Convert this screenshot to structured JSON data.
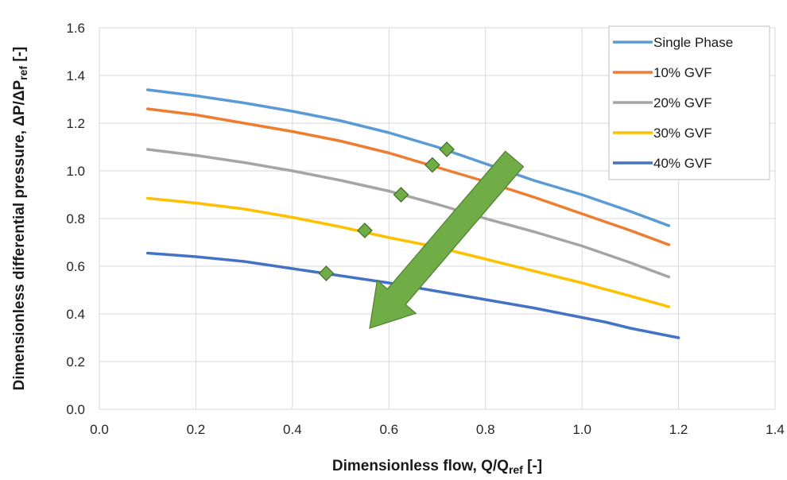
{
  "chart_data": {
    "type": "line",
    "xlabel": "Dimensionless flow, Q/Q",
    "xlabel_sub": "ref",
    "xlabel_tail": " [-]",
    "ylabel": "Dimensionless differential pressure, ΔP/ΔP",
    "ylabel_sub": "ref",
    "ylabel_tail": " [-]",
    "xlim": [
      0.0,
      1.4
    ],
    "ylim": [
      0.0,
      1.6
    ],
    "xticks": [
      "0.0",
      "0.2",
      "0.4",
      "0.6",
      "0.8",
      "1.0",
      "1.2",
      "1.4"
    ],
    "yticks": [
      "0.0",
      "0.2",
      "0.4",
      "0.6",
      "0.8",
      "1.0",
      "1.2",
      "1.4",
      "1.6"
    ],
    "grid": true,
    "legend_position": "top-right",
    "series": [
      {
        "name": "Single Phase",
        "color": "#5B9BD5",
        "x": [
          0.1,
          0.2,
          0.3,
          0.4,
          0.5,
          0.6,
          0.7,
          0.8,
          0.9,
          1.0,
          1.1,
          1.18
        ],
        "y": [
          1.34,
          1.315,
          1.285,
          1.25,
          1.21,
          1.16,
          1.1,
          1.03,
          0.96,
          0.9,
          0.83,
          0.77
        ]
      },
      {
        "name": "10% GVF",
        "color": "#ED7D31",
        "x": [
          0.1,
          0.2,
          0.3,
          0.4,
          0.5,
          0.6,
          0.7,
          0.8,
          0.9,
          1.0,
          1.1,
          1.18
        ],
        "y": [
          1.26,
          1.235,
          1.2,
          1.165,
          1.125,
          1.075,
          1.015,
          0.955,
          0.89,
          0.82,
          0.75,
          0.69
        ]
      },
      {
        "name": "20% GVF",
        "color": "#A5A5A5",
        "x": [
          0.1,
          0.2,
          0.3,
          0.4,
          0.5,
          0.6,
          0.7,
          0.8,
          0.9,
          1.0,
          1.1,
          1.18
        ],
        "y": [
          1.09,
          1.065,
          1.035,
          1.0,
          0.96,
          0.915,
          0.86,
          0.8,
          0.745,
          0.685,
          0.615,
          0.555
        ]
      },
      {
        "name": "30% GVF",
        "color": "#FFC000",
        "x": [
          0.1,
          0.2,
          0.3,
          0.4,
          0.5,
          0.6,
          0.7,
          0.8,
          0.9,
          1.0,
          1.1,
          1.18
        ],
        "y": [
          0.885,
          0.865,
          0.84,
          0.805,
          0.765,
          0.72,
          0.68,
          0.63,
          0.58,
          0.53,
          0.475,
          0.43
        ]
      },
      {
        "name": "40% GVF",
        "color": "#4472C4",
        "x": [
          0.1,
          0.2,
          0.3,
          0.4,
          0.5,
          0.6,
          0.7,
          0.8,
          0.9,
          1.0,
          1.05,
          1.1,
          1.2
        ],
        "y": [
          0.655,
          0.64,
          0.62,
          0.59,
          0.56,
          0.53,
          0.495,
          0.46,
          0.425,
          0.385,
          0.365,
          0.34,
          0.3
        ]
      }
    ],
    "markers": {
      "shape": "diamond",
      "color": "#70AD47",
      "points": [
        {
          "x": 0.72,
          "y": 1.09
        },
        {
          "x": 0.69,
          "y": 1.025
        },
        {
          "x": 0.625,
          "y": 0.9
        },
        {
          "x": 0.55,
          "y": 0.75
        },
        {
          "x": 0.47,
          "y": 0.57
        }
      ]
    },
    "arrow": {
      "color": "#70AD47",
      "from": {
        "x": 0.86,
        "y": 1.05
      },
      "to": {
        "x": 0.56,
        "y": 0.34
      }
    }
  }
}
